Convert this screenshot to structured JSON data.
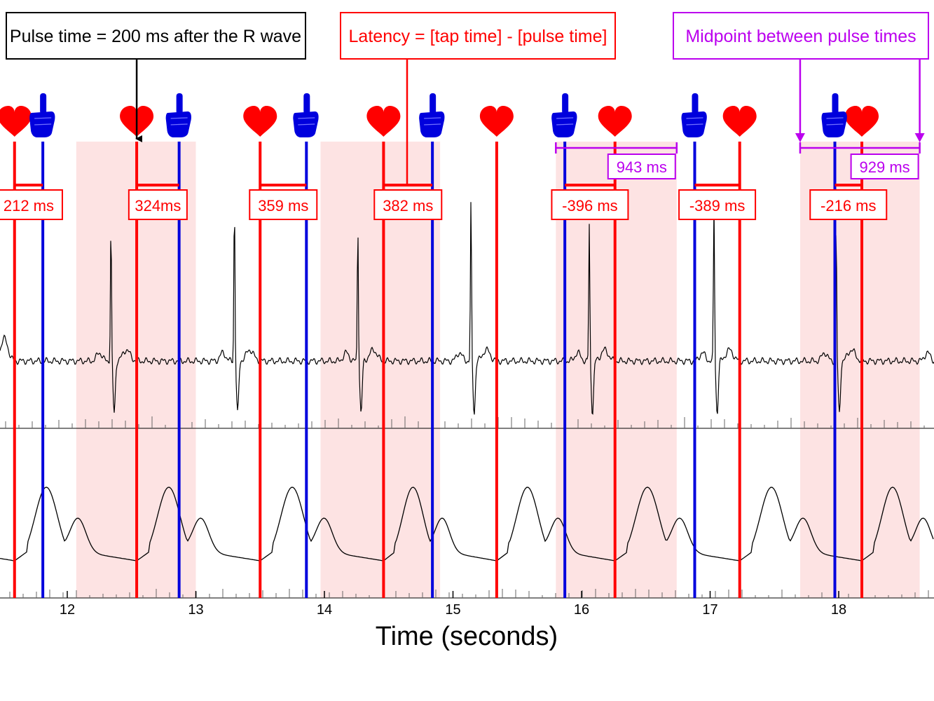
{
  "colors": {
    "pulse": "#ff0000",
    "tap": "#0000dd",
    "midpoint": "#bb00ee",
    "shade": "#fde3e3",
    "trace": "#000000"
  },
  "callouts": {
    "pulse_time": "Pulse time = 200 ms after the R wave",
    "latency": "Latency = [tap time] - [pulse time]",
    "midpoint": "Midpoint between pulse times"
  },
  "axis": {
    "xlabel": "Time (seconds)",
    "xmin": 11.5,
    "xmax": 18.75,
    "ticks": [
      12,
      13,
      14,
      15,
      16,
      17,
      18
    ]
  },
  "pulse_times": [
    11.59,
    12.54,
    13.5,
    14.46,
    15.34,
    16.26,
    17.23,
    18.18
  ],
  "tap_times": [
    11.81,
    12.87,
    13.86,
    14.84,
    15.87,
    16.88,
    17.97
  ],
  "shaded_windows": [
    [
      12.07,
      13.0
    ],
    [
      13.97,
      14.9
    ],
    [
      15.8,
      16.74
    ],
    [
      17.7,
      18.63
    ]
  ],
  "latencies": [
    {
      "label": "212 ms",
      "pulse": 11.59,
      "tap": 11.81
    },
    {
      "label": "324ms",
      "pulse": 12.54,
      "tap": 12.87
    },
    {
      "label": "359 ms",
      "pulse": 13.5,
      "tap": 13.86
    },
    {
      "label": "382 ms",
      "pulse": 14.46,
      "tap": 14.84
    },
    {
      "label": "-396 ms",
      "pulse": 16.26,
      "tap": 15.87
    },
    {
      "label": "-389 ms",
      "pulse": 17.23,
      "tap": 16.88
    },
    {
      "label": "-216 ms",
      "pulse": 18.18,
      "tap": 17.97
    }
  ],
  "intervals": [
    {
      "label": "943 ms",
      "start": 15.8,
      "end": 16.74
    },
    {
      "label": "929 ms",
      "start": 17.7,
      "end": 18.63
    }
  ],
  "icons": {
    "pulse": "heart-icon",
    "tap": "pointing-hand-icon"
  }
}
